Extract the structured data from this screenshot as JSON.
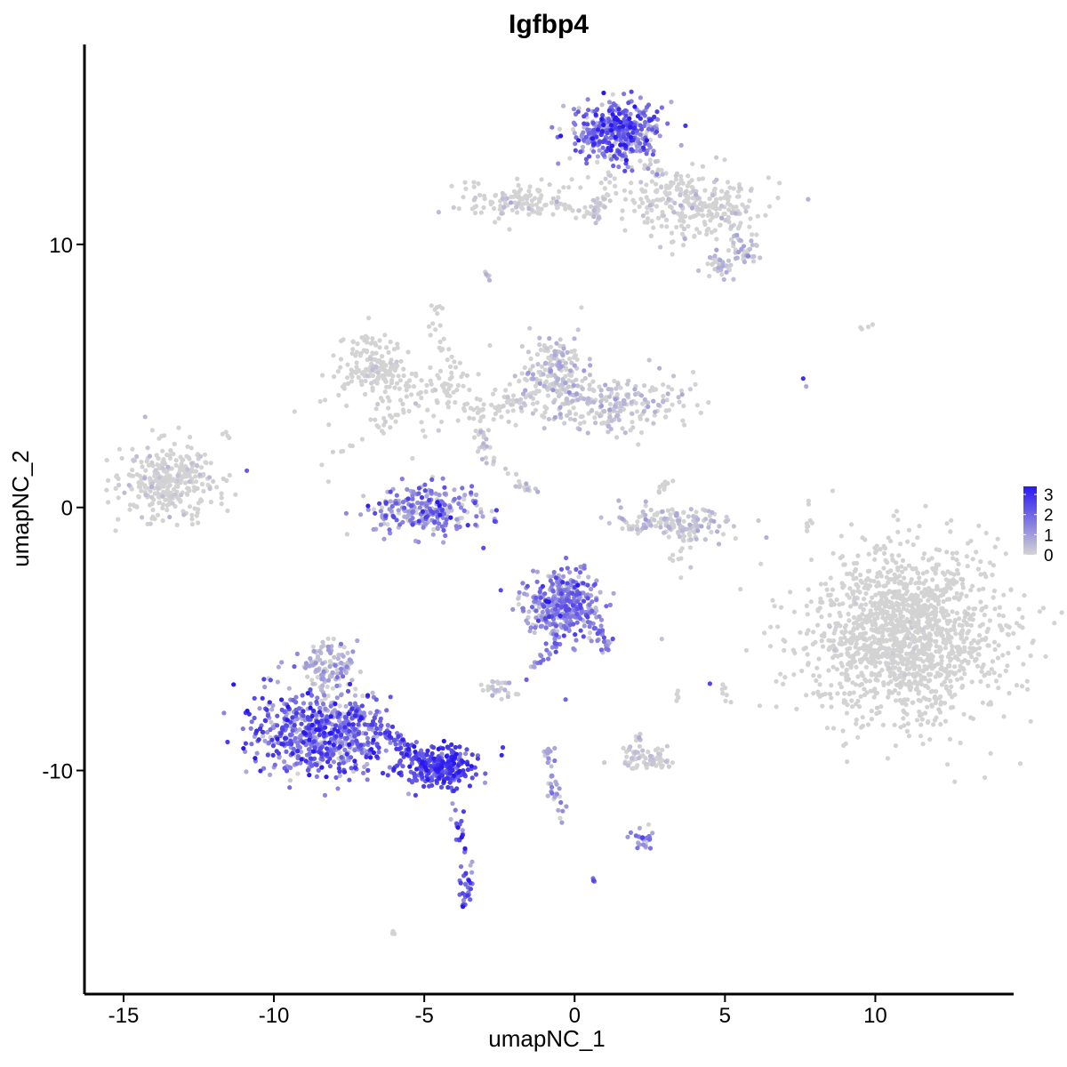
{
  "chart_data": {
    "type": "scatter",
    "title": "Igfbp4",
    "xlabel": "umapNC_1",
    "ylabel": "umapNC_2",
    "xlim": [
      -16.3,
      14.6
    ],
    "ylim": [
      -18.5,
      17.6
    ],
    "x_ticks": [
      {
        "value": -15,
        "label": "-15"
      },
      {
        "value": -10,
        "label": "-10"
      },
      {
        "value": -5,
        "label": "-5"
      },
      {
        "value": 0,
        "label": "0"
      },
      {
        "value": 5,
        "label": "5"
      },
      {
        "value": 10,
        "label": "10"
      }
    ],
    "y_ticks": [
      {
        "value": -10,
        "label": "-10"
      },
      {
        "value": 0,
        "label": "0"
      },
      {
        "value": 10,
        "label": "10"
      }
    ],
    "grid": false,
    "legend": {
      "placement": "right",
      "type": "colorbar",
      "min": 0,
      "max": 3.4,
      "low_color": "#d3d3d3",
      "high_color": "#2a18f0",
      "ticks": [
        {
          "value": 0,
          "label": "0"
        },
        {
          "value": 1,
          "label": "1"
        },
        {
          "value": 2,
          "label": "2"
        },
        {
          "value": 3,
          "label": "3"
        }
      ]
    },
    "clusters": [
      {
        "cx": -13.5,
        "cy": 1.0,
        "sx": 0.8,
        "sy": 0.7,
        "n": 320,
        "expr": 0.05,
        "spread": 0.3
      },
      {
        "cx": -6.6,
        "cy": 5.4,
        "sx": 0.6,
        "sy": 0.6,
        "n": 160,
        "expr": 0.02,
        "spread": 0.2
      },
      {
        "cx": -4.5,
        "cy": 4.2,
        "sx": 1.8,
        "sy": 0.8,
        "n": 110,
        "expr": 0.02,
        "spread": 0.2
      },
      {
        "cx": -0.6,
        "cy": 5.2,
        "sx": 0.5,
        "sy": 0.7,
        "n": 150,
        "expr": 0.25,
        "spread": 0.5
      },
      {
        "cx": 1.3,
        "cy": 4.0,
        "sx": 1.4,
        "sy": 0.5,
        "n": 220,
        "expr": 0.1,
        "spread": 0.4
      },
      {
        "cx": -4.9,
        "cy": -0.1,
        "sx": 0.9,
        "sy": 0.5,
        "n": 260,
        "expr": 1.2,
        "spread": 0.9
      },
      {
        "cx": 3.5,
        "cy": -0.6,
        "sx": 1.0,
        "sy": 0.3,
        "n": 140,
        "expr": 0.15,
        "spread": 0.4
      },
      {
        "cx": 11.0,
        "cy": -4.8,
        "sx": 1.6,
        "sy": 1.6,
        "n": 1500,
        "expr": 0.01,
        "spread": 0.1
      },
      {
        "cx": 1.4,
        "cy": 14.3,
        "sx": 0.7,
        "sy": 0.6,
        "n": 420,
        "expr": 1.6,
        "spread": 1.0
      },
      {
        "cx": 3.8,
        "cy": 11.6,
        "sx": 1.2,
        "sy": 0.7,
        "n": 260,
        "expr": 0.05,
        "spread": 0.3
      },
      {
        "cx": -1.9,
        "cy": 11.6,
        "sx": 0.9,
        "sy": 0.4,
        "n": 120,
        "expr": 0.05,
        "spread": 0.3
      },
      {
        "cx": -0.4,
        "cy": -3.7,
        "sx": 0.6,
        "sy": 0.6,
        "n": 380,
        "expr": 1.3,
        "spread": 0.8
      },
      {
        "cx": -8.5,
        "cy": -8.6,
        "sx": 1.1,
        "sy": 0.8,
        "n": 650,
        "expr": 1.6,
        "spread": 1.0
      },
      {
        "cx": -8.2,
        "cy": -6.0,
        "sx": 0.5,
        "sy": 0.5,
        "n": 120,
        "expr": 0.4,
        "spread": 0.5
      },
      {
        "cx": -4.6,
        "cy": -9.8,
        "sx": 0.7,
        "sy": 0.35,
        "n": 220,
        "expr": 2.6,
        "spread": 0.6
      },
      {
        "cx": 2.4,
        "cy": -9.6,
        "sx": 0.5,
        "sy": 0.2,
        "n": 70,
        "expr": 0.1,
        "spread": 0.3
      },
      {
        "cx": -2.5,
        "cy": -6.9,
        "sx": 0.3,
        "sy": 0.2,
        "n": 30,
        "expr": 0.1,
        "spread": 0.3
      },
      {
        "cx": 3.5,
        "cy": -1.3,
        "sx": 0.2,
        "sy": 0.6,
        "n": 30,
        "expr": 0.05,
        "spread": 0.2
      },
      {
        "cx": 2.3,
        "cy": -12.6,
        "sx": 0.2,
        "sy": 0.2,
        "n": 25,
        "expr": 1.2,
        "spread": 0.6
      },
      {
        "cx": 4.8,
        "cy": 9.2,
        "sx": 0.3,
        "sy": 0.3,
        "n": 35,
        "expr": 0.4,
        "spread": 0.5
      },
      {
        "cx": 5.7,
        "cy": 9.7,
        "sx": 0.25,
        "sy": 0.2,
        "n": 30,
        "expr": 0.4,
        "spread": 0.5
      }
    ],
    "trails": [
      {
        "points": [
          [
            -7.4,
            -7.8
          ],
          [
            -6.0,
            -8.8
          ],
          [
            -4.9,
            -9.7
          ],
          [
            -4.1,
            -10.4
          ]
        ],
        "n": 120,
        "jitter": 0.15,
        "expr": 2.3,
        "spread": 0.6
      },
      {
        "points": [
          [
            -4.1,
            -10.6
          ],
          [
            -3.8,
            -12.4
          ],
          [
            -3.6,
            -14.2
          ],
          [
            -3.7,
            -15.2
          ]
        ],
        "n": 55,
        "jitter": 0.12,
        "expr": 2.2,
        "spread": 0.8
      },
      {
        "points": [
          [
            -0.2,
            -4.2
          ],
          [
            -0.7,
            -5.4
          ],
          [
            -1.6,
            -6.3
          ]
        ],
        "n": 30,
        "jitter": 0.1,
        "expr": 1.4,
        "spread": 0.6
      },
      {
        "points": [
          [
            0.4,
            -4.2
          ],
          [
            1.0,
            -5.0
          ],
          [
            1.1,
            -5.5
          ]
        ],
        "n": 30,
        "jitter": 0.1,
        "expr": 1.6,
        "spread": 0.6
      },
      {
        "points": [
          [
            -0.9,
            -9.0
          ],
          [
            -0.7,
            -10.6
          ],
          [
            -0.4,
            -12.2
          ]
        ],
        "n": 35,
        "jitter": 0.1,
        "expr": 0.9,
        "spread": 0.7
      },
      {
        "points": [
          [
            -4.3,
            4.0
          ],
          [
            -4.1,
            5.4
          ],
          [
            -4.8,
            7.5
          ]
        ],
        "n": 30,
        "jitter": 0.15,
        "expr": 0.02,
        "spread": 0.1
      },
      {
        "points": [
          [
            -3.3,
            3.5
          ],
          [
            -1.8,
            4.0
          ],
          [
            -0.6,
            5.0
          ]
        ],
        "n": 50,
        "jitter": 0.2,
        "expr": 0.05,
        "spread": 0.2
      },
      {
        "points": [
          [
            -3.3,
            3.1
          ],
          [
            -2.9,
            1.8
          ],
          [
            -1.7,
            0.8
          ],
          [
            -1.3,
            0.7
          ]
        ],
        "n": 40,
        "jitter": 0.15,
        "expr": 0.1,
        "spread": 0.3
      },
      {
        "points": [
          [
            -8.3,
            1.5
          ],
          [
            -6.8,
            2.8
          ],
          [
            -5.6,
            3.6
          ]
        ],
        "n": 20,
        "jitter": 0.2,
        "expr": 0.02,
        "spread": 0.1
      },
      {
        "points": [
          [
            1.2,
            12.9
          ],
          [
            0.9,
            11.6
          ],
          [
            0.6,
            10.9
          ]
        ],
        "n": 35,
        "jitter": 0.15,
        "expr": 0.1,
        "spread": 0.3
      },
      {
        "points": [
          [
            2.3,
            13.2
          ],
          [
            3.4,
            12.3
          ],
          [
            4.7,
            11.5
          ],
          [
            5.6,
            10.0
          ]
        ],
        "n": 45,
        "jitter": 0.25,
        "expr": 0.1,
        "spread": 0.3
      },
      {
        "points": [
          [
            -0.7,
            11.5
          ],
          [
            0.5,
            11.2
          ]
        ],
        "n": 20,
        "jitter": 0.08,
        "expr": 0.05,
        "spread": 0.3
      },
      {
        "points": [
          [
            -7.7,
            -8.0
          ],
          [
            -7.1,
            -9.3
          ]
        ],
        "n": 15,
        "jitter": 0.2,
        "expr": 1.4,
        "spread": 0.6
      },
      {
        "points": [
          [
            2.7,
            0.6
          ],
          [
            3.2,
            1.0
          ]
        ],
        "n": 10,
        "jitter": 0.1,
        "expr": 0.05,
        "spread": 0.2
      },
      {
        "points": [
          [
            7.8,
            0.5
          ],
          [
            7.8,
            -1.0
          ]
        ],
        "n": 8,
        "jitter": 0.05,
        "expr": 0.0,
        "spread": 0.1
      },
      {
        "points": [
          [
            5.0,
            -6.8
          ],
          [
            5.0,
            -7.4
          ]
        ],
        "n": 6,
        "jitter": 0.05,
        "expr": 0.0,
        "spread": 0.1
      },
      {
        "points": [
          [
            3.4,
            -7.0
          ],
          [
            3.5,
            -7.6
          ]
        ],
        "n": 5,
        "jitter": 0.05,
        "expr": 0.0,
        "spread": 0.1
      },
      {
        "points": [
          [
            2.2,
            -8.5
          ],
          [
            2.1,
            -8.9
          ]
        ],
        "n": 5,
        "jitter": 0.05,
        "expr": 0.3,
        "spread": 0.4
      },
      {
        "points": [
          [
            0.6,
            -14.1
          ],
          [
            0.7,
            -14.2
          ]
        ],
        "n": 5,
        "jitter": 0.05,
        "expr": 1.8,
        "spread": 0.3
      },
      {
        "points": [
          [
            9.3,
            6.8
          ],
          [
            10.0,
            6.9
          ]
        ],
        "n": 4,
        "jitter": 0.05,
        "expr": 0.0,
        "spread": 0.1
      },
      {
        "points": [
          [
            -11.5,
            2.6
          ],
          [
            -11.6,
            2.9
          ]
        ],
        "n": 4,
        "jitter": 0.05,
        "expr": 0.0,
        "spread": 0.1
      },
      {
        "points": [
          [
            -6.1,
            -16.3
          ],
          [
            -6.0,
            -16.1
          ]
        ],
        "n": 4,
        "jitter": 0.03,
        "expr": 0.0,
        "spread": 0.1
      },
      {
        "points": [
          [
            -2.9,
            8.9
          ],
          [
            -2.8,
            8.5
          ]
        ],
        "n": 5,
        "jitter": 0.05,
        "expr": 0.3,
        "spread": 0.3
      },
      {
        "points": [
          [
            -4.6,
            7.3
          ],
          [
            -4.5,
            7.8
          ]
        ],
        "n": 5,
        "jitter": 0.05,
        "expr": 0.0,
        "spread": 0.1
      }
    ],
    "singles": [
      {
        "x": 7.6,
        "y": 4.9,
        "expr": 3.0
      },
      {
        "x": 7.7,
        "y": 4.6,
        "expr": 0.8
      },
      {
        "x": -10.9,
        "y": 1.4,
        "expr": 2.2
      },
      {
        "x": -0.3,
        "y": -7.3,
        "expr": 2.0
      },
      {
        "x": 4.5,
        "y": -6.7,
        "expr": 2.6
      },
      {
        "x": 2.9,
        "y": -5.0,
        "expr": 0.3
      },
      {
        "x": 5.2,
        "y": -7.4,
        "expr": 0.0
      }
    ]
  }
}
